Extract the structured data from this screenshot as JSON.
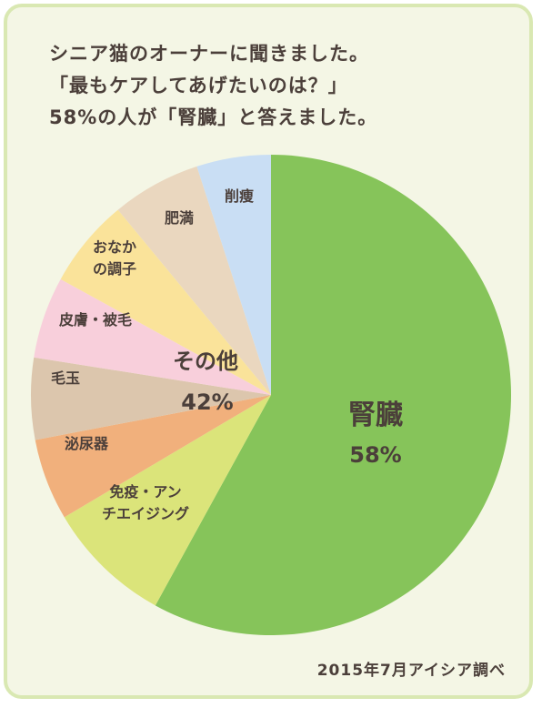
{
  "title_lines": [
    "シニア猫のオーナーに聞きました。",
    "「最もケアしてあげたいのは？」",
    "58%の人が「腎臓」と答えました。"
  ],
  "source_note": "2015年7月アイシア調べ",
  "chart_data": {
    "type": "pie",
    "title": "",
    "start_angle_deg": 0,
    "direction": "clockwise",
    "slices": [
      {
        "label": "腎臓",
        "value": 58,
        "value_label": "58%",
        "color": "#86c45a"
      },
      {
        "label": "免疫・アンチエイジング",
        "value": 8.5,
        "color": "#dbe47a"
      },
      {
        "label": "泌尿器",
        "value": 5.5,
        "color": "#f1b07c"
      },
      {
        "label": "毛玉",
        "value": 5.5,
        "color": "#dcc6ad"
      },
      {
        "label": "皮膚・被毛",
        "value": 5.5,
        "color": "#f8cfdb"
      },
      {
        "label": "おなかの調子",
        "value": 6,
        "color": "#fae39a"
      },
      {
        "label": "肥満",
        "value": 6,
        "color": "#ead7bf"
      },
      {
        "label": "削痩",
        "value": 5,
        "color": "#c9def4"
      }
    ],
    "group_label": {
      "label": "その他",
      "value_label": "42%"
    }
  }
}
